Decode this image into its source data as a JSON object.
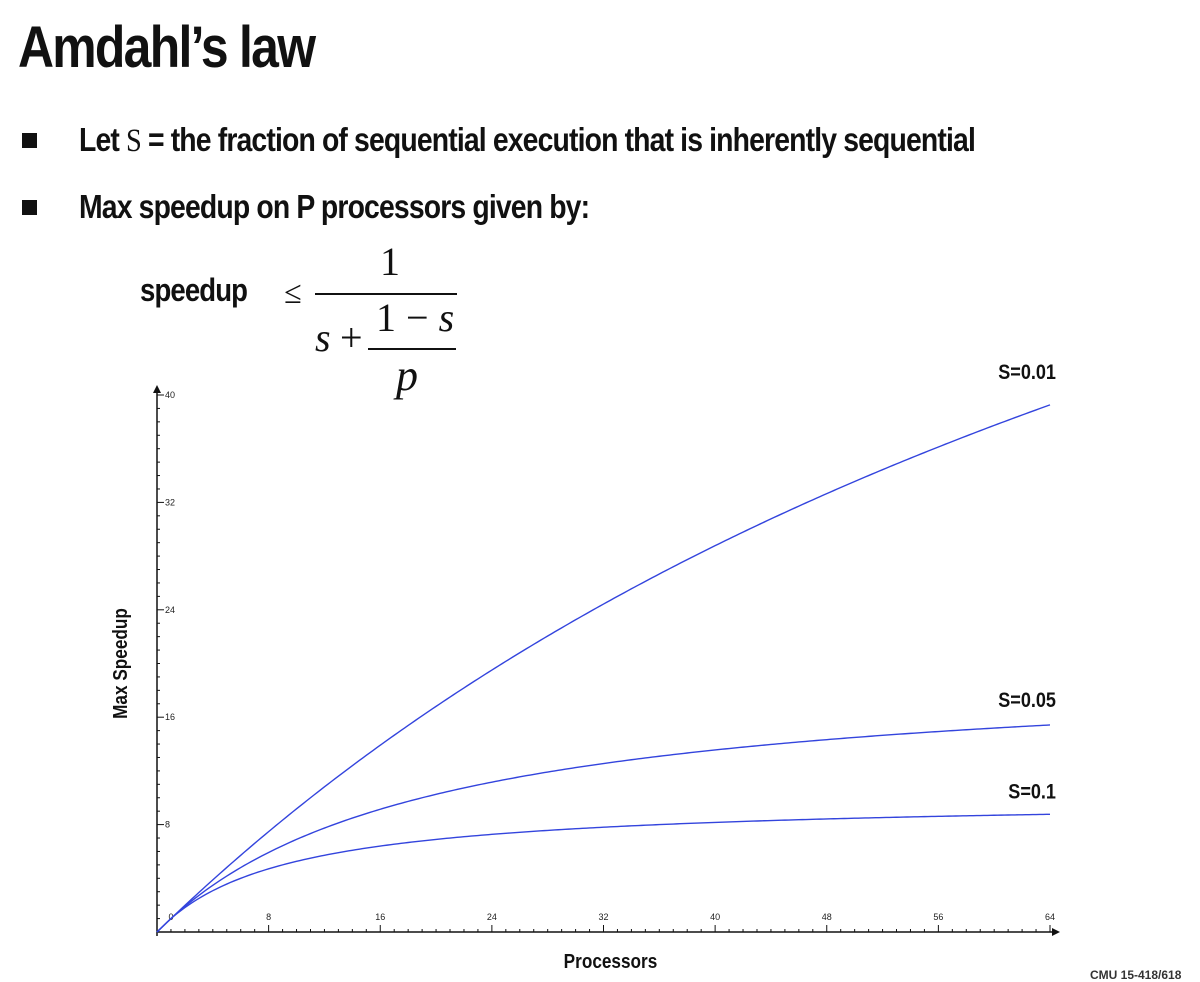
{
  "slide": {
    "title": "Amdahl’s law",
    "bullet1": {
      "prefix": "Let ",
      "symbol": "S",
      "suffix": " = the fraction of sequential execution that is inherently sequential"
    },
    "bullet2": "Max speedup on P processors given by:",
    "formula": {
      "lhs": "speedup",
      "relation": "≤",
      "numerator": "1",
      "s": "s",
      "plus": "+",
      "inner_numerator_one": "1",
      "inner_minus": " − ",
      "inner_s": "s",
      "inner_denominator": "p"
    },
    "footer": "CMU 15-418/618"
  },
  "chart_data": {
    "type": "line",
    "xlabel": "Processors",
    "ylabel": "Max Speedup",
    "xlim": [
      0,
      64
    ],
    "ylim": [
      0,
      40
    ],
    "xticks": [
      0,
      8,
      16,
      24,
      32,
      40,
      48,
      56,
      64
    ],
    "yticks": [
      8,
      16,
      24,
      32,
      40
    ],
    "x": [
      1,
      2,
      4,
      8,
      16,
      24,
      32,
      40,
      48,
      56,
      64
    ],
    "series": [
      {
        "name": "S=0.01",
        "values": [
          1.0,
          1.98,
          3.88,
          7.48,
          13.91,
          19.51,
          24.43,
          28.78,
          32.65,
          36.13,
          39.26
        ],
        "color": "#3344dd"
      },
      {
        "name": "S=0.05",
        "values": [
          1.0,
          1.9,
          3.48,
          5.93,
          9.14,
          11.16,
          12.55,
          13.56,
          14.33,
          14.94,
          15.42
        ],
        "color": "#3344dd"
      },
      {
        "name": "S=0.1",
        "values": [
          1.0,
          1.82,
          3.08,
          4.71,
          6.4,
          7.27,
          7.8,
          8.16,
          8.42,
          8.62,
          8.77
        ],
        "color": "#3344dd"
      }
    ]
  }
}
